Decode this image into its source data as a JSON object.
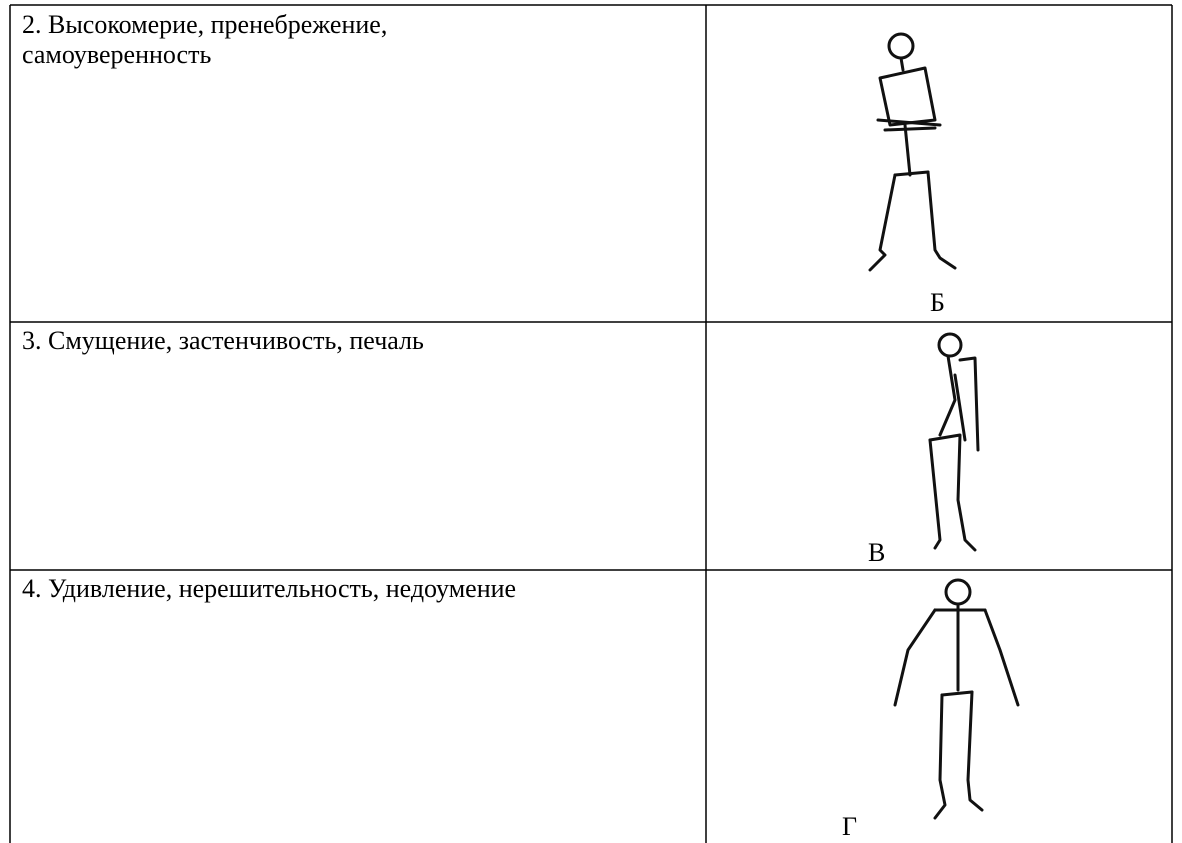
{
  "table": {
    "rows": [
      [
        "2. Высокомерие, пренебрежение, самоуверенность",
        "Б"
      ],
      [
        "3. Смущение, застенчивость, печаль",
        "В"
      ],
      [
        "4. Удивление, нерешительность, недоумение",
        "Г"
      ]
    ]
  }
}
